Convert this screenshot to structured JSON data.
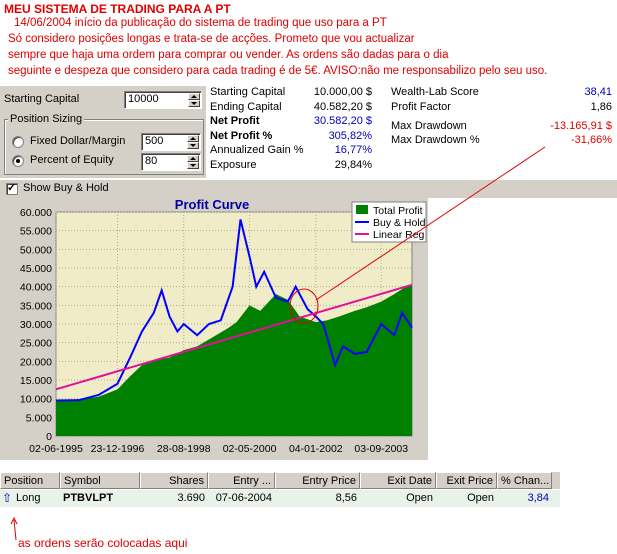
{
  "heading": "MEU SISTEMA DE TRADING PARA A PT",
  "intro_lines": [
    "14/06/2004 início da publicação do sistema de trading que uso para a PT",
    "Só considero posições longas e trata-se de acções. Prometo que vou actualizar",
    "sempre que haja uma ordem para comprar ou vender. As ordens são dadas para o dia",
    "seguinte e despeza que considero para cada trading é de 5€. AVISO:não me responsabilizo pelo seu uso."
  ],
  "controls": {
    "starting_capital_label": "Starting Capital",
    "starting_capital_value": "10000",
    "position_sizing_label": "Position Sizing",
    "fixed_label": "Fixed Dollar/Margin",
    "fixed_value": "500",
    "percent_label": "Percent of Equity",
    "percent_value": "80",
    "selected": "percent"
  },
  "stats_left": [
    {
      "label": "Starting Capital",
      "value": "10.000,00 $",
      "bold": false,
      "blue": false
    },
    {
      "label": "Ending Capital",
      "value": "40.582,20 $",
      "bold": false,
      "blue": false
    },
    {
      "label": "Net Profit",
      "value": "30.582,20 $",
      "bold": true,
      "blue": true
    },
    {
      "label": "Net Profit %",
      "value": "305,82%",
      "bold": true,
      "blue": true
    },
    {
      "label": "Annualized Gain %",
      "value": "16,77%",
      "bold": false,
      "blue": true
    },
    {
      "label": "Exposure",
      "value": "29,84%",
      "bold": false,
      "blue": false
    }
  ],
  "stats_right": [
    {
      "label": "Wealth-Lab Score",
      "value": "38,41",
      "color": "#0000c0"
    },
    {
      "label": "Profit Factor",
      "value": "1,86",
      "color": "#000000"
    },
    {
      "label": "Max Drawdown",
      "value": "-13.165,91 $",
      "color": "#e00000"
    },
    {
      "label": "Max Drawdown %",
      "value": "-31,66%",
      "color": "#e00000"
    }
  ],
  "show_buy_hold_label": "Show Buy & Hold",
  "show_buy_hold_checked": true,
  "chart_data": {
    "type": "area",
    "title": "Profit Curve",
    "ylim": [
      0,
      60000
    ],
    "yticks": [
      "0",
      "5.000",
      "10.000",
      "15.000",
      "20.000",
      "25.000",
      "30.000",
      "35.000",
      "40.000",
      "45.000",
      "50.000",
      "55.000",
      "60.000"
    ],
    "ytick_values": [
      0,
      5000,
      10000,
      15000,
      20000,
      25000,
      30000,
      35000,
      40000,
      45000,
      50000,
      55000,
      60000
    ],
    "xticks": [
      "02-06-1995",
      "23-12-1996",
      "28-08-1998",
      "02-05-2000",
      "04-01-2002",
      "03-09-2003"
    ],
    "x_range": [
      1995.42,
      2004.45
    ],
    "xtick_values": [
      1995.42,
      1996.98,
      1998.66,
      2000.33,
      2002.01,
      2003.67
    ],
    "legend": [
      "Total Profit",
      "Buy & Hold",
      "Linear Reg"
    ],
    "legend_position": "top-right",
    "colors": {
      "total_profit": "#008000",
      "buy_hold": "#0000ff",
      "linear_reg": "#e0109a",
      "plot_bg": "#f0ecc8"
    },
    "series": [
      {
        "name": "Total Profit",
        "x": [
          1995.42,
          1996.0,
          1996.5,
          1996.98,
          1997.3,
          1997.6,
          1998.0,
          1998.3,
          1998.66,
          1999.0,
          1999.4,
          1999.8,
          2000.0,
          2000.33,
          2000.6,
          2001.0,
          2001.3,
          2001.6,
          2002.01,
          2002.3,
          2002.6,
          2003.0,
          2003.3,
          2003.67,
          2004.0,
          2004.3,
          2004.45
        ],
        "values": [
          9500,
          9800,
          10500,
          12500,
          16000,
          19000,
          20500,
          21000,
          23000,
          24000,
          26500,
          29000,
          30500,
          35000,
          33500,
          38000,
          36500,
          32000,
          30500,
          31000,
          32000,
          33500,
          34500,
          36000,
          38000,
          40000,
          40582
        ]
      },
      {
        "name": "Buy & Hold",
        "x": [
          1995.42,
          1996.0,
          1996.5,
          1996.98,
          1997.3,
          1997.6,
          1997.9,
          1998.1,
          1998.3,
          1998.5,
          1998.66,
          1999.0,
          1999.3,
          1999.6,
          1999.9,
          2000.1,
          2000.33,
          2000.5,
          2000.7,
          2001.0,
          2001.3,
          2001.5,
          2001.8,
          2002.01,
          2002.2,
          2002.5,
          2002.7,
          2003.0,
          2003.3,
          2003.67,
          2004.0,
          2004.2,
          2004.45
        ],
        "values": [
          9500,
          9600,
          11000,
          14000,
          21000,
          28000,
          33000,
          39000,
          32000,
          28000,
          30000,
          27000,
          30000,
          31000,
          40000,
          58000,
          48000,
          40000,
          44000,
          37000,
          36000,
          40000,
          34000,
          32000,
          30000,
          19000,
          24000,
          22000,
          22500,
          30000,
          27000,
          33000,
          29000
        ]
      },
      {
        "name": "Linear Reg",
        "x": [
          1995.42,
          2004.45
        ],
        "values": [
          12500,
          40500
        ]
      }
    ]
  },
  "table": {
    "headers": [
      "Position",
      "Symbol",
      "Shares",
      "Entry ...",
      "Entry Price",
      "Exit Date",
      "Exit Price",
      "% Chan..."
    ],
    "row": [
      "Long",
      "PTBVLPT",
      "3.690",
      "07-06-2004",
      "8,56",
      "Open",
      "Open",
      "3,84"
    ]
  },
  "footer_note": "as ordens serão colocadas aqui"
}
